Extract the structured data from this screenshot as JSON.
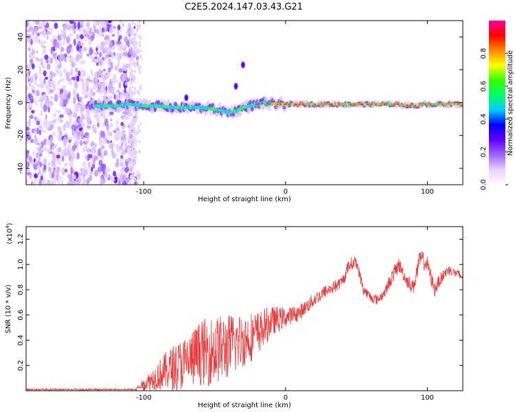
{
  "title": "C2E5.2024.147.03.43.G21",
  "chart_data": [
    {
      "type": "heatmap",
      "title": "C2E5.2024.147.03.43.G21",
      "xlabel": "Height of straight line (km)",
      "ylabel": "Frequency (Hz)",
      "xlim": [
        -183,
        125
      ],
      "ylim": [
        -50,
        50
      ],
      "xticks": [
        -100,
        0,
        100
      ],
      "yticks": [
        -40,
        -20,
        0,
        20,
        40
      ],
      "colorbar": {
        "label": "Normalized spectral amplitude",
        "range": [
          0,
          1
        ],
        "ticks": [
          0.0,
          0.2,
          0.4,
          0.6,
          0.8
        ],
        "colors": [
          "#ffffff",
          "#e8d0ff",
          "#9966ff",
          "#6600ff",
          "#0000ff",
          "#00ccff",
          "#00ff66",
          "#33ff00",
          "#ffff00",
          "#ff8800",
          "#ff0000",
          "#ff0099"
        ]
      },
      "ridge": {
        "x": [
          -135,
          -120,
          -110,
          -100,
          -90,
          -80,
          -70,
          -60,
          -50,
          -45,
          -40,
          -35,
          -30,
          -25,
          -20,
          -15,
          -10,
          0,
          20,
          50,
          80,
          90,
          100,
          125
        ],
        "y": [
          -2,
          -2,
          -1,
          -2,
          -2,
          -3,
          -3,
          -3,
          -4,
          -5,
          -6,
          -5,
          -3,
          -2,
          -1,
          0,
          -1,
          -1,
          -1,
          -1,
          -1,
          -2,
          -1,
          -1
        ]
      },
      "features": [
        {
          "x": -30,
          "y": 23
        },
        {
          "x": -35,
          "y": 10
        },
        {
          "x": -70,
          "y": 3
        }
      ]
    },
    {
      "type": "line",
      "xlabel": "Height of straight line (km)",
      "ylabel": "SNR (10 * v/v)",
      "y_multiplier": "(x10",
      "y_multiplier_exp": "4",
      "y_multiplier_close": ")",
      "xlim": [
        -183,
        125
      ],
      "ylim": [
        0,
        1.3
      ],
      "xticks": [
        -100,
        0,
        100
      ],
      "yticks": [
        0.2,
        0.4,
        0.6,
        0.8,
        1.0,
        1.2
      ],
      "color": "#e83a3a",
      "x": [
        -183,
        -160,
        -140,
        -120,
        -105,
        -100,
        -90,
        -80,
        -70,
        -60,
        -50,
        -40,
        -30,
        -20,
        -10,
        0,
        10,
        20,
        30,
        40,
        45,
        50,
        55,
        60,
        65,
        70,
        75,
        80,
        85,
        90,
        95,
        100,
        105,
        110,
        115,
        120,
        125
      ],
      "y": [
        0.01,
        0.01,
        0.01,
        0.01,
        0.02,
        0.05,
        0.12,
        0.18,
        0.22,
        0.3,
        0.32,
        0.35,
        0.4,
        0.45,
        0.55,
        0.58,
        0.62,
        0.72,
        0.8,
        0.86,
        1.0,
        1.02,
        0.8,
        0.74,
        0.72,
        0.78,
        0.9,
        1.0,
        0.88,
        0.82,
        1.05,
        1.0,
        0.8,
        0.9,
        0.96,
        0.93,
        0.9
      ],
      "spread": [
        0.0,
        0.0,
        0.0,
        0.0,
        0.01,
        0.04,
        0.12,
        0.18,
        0.22,
        0.26,
        0.28,
        0.26,
        0.22,
        0.18,
        0.12,
        0.08,
        0.06,
        0.06,
        0.05,
        0.05,
        0.05,
        0.05,
        0.04,
        0.04,
        0.04,
        0.04,
        0.06,
        0.06,
        0.05,
        0.06,
        0.08,
        0.06,
        0.06,
        0.05,
        0.04,
        0.04,
        0.04
      ]
    }
  ]
}
